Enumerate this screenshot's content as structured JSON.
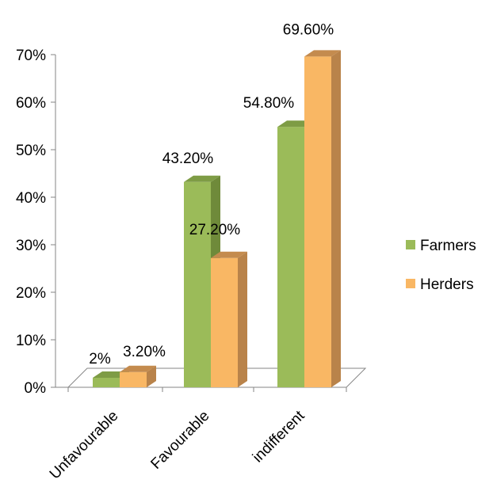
{
  "chart_data": {
    "type": "bar",
    "categories": [
      "Unfavourable",
      "Favourable",
      "indifferent"
    ],
    "series": [
      {
        "name": "Farmers",
        "values": [
          2,
          43.2,
          54.8
        ],
        "labels": [
          "2%",
          "43.20%",
          "54.80%"
        ],
        "color": "#9BBB59",
        "side_color": "#6F8A3A",
        "top_color": "#7E9C45"
      },
      {
        "name": "Herders",
        "values": [
          3.2,
          27.2,
          69.6
        ],
        "labels": [
          "3.20%",
          "27.20%",
          "69.60%"
        ],
        "color": "#F9B764",
        "side_color": "#B9834A",
        "top_color": "#C48B4E"
      }
    ],
    "ylim": [
      0,
      70
    ],
    "yticks": [
      "0%",
      "10%",
      "20%",
      "30%",
      "40%",
      "50%",
      "60%",
      "70%"
    ],
    "legend_position": "right",
    "grid": false,
    "three_d": true
  }
}
